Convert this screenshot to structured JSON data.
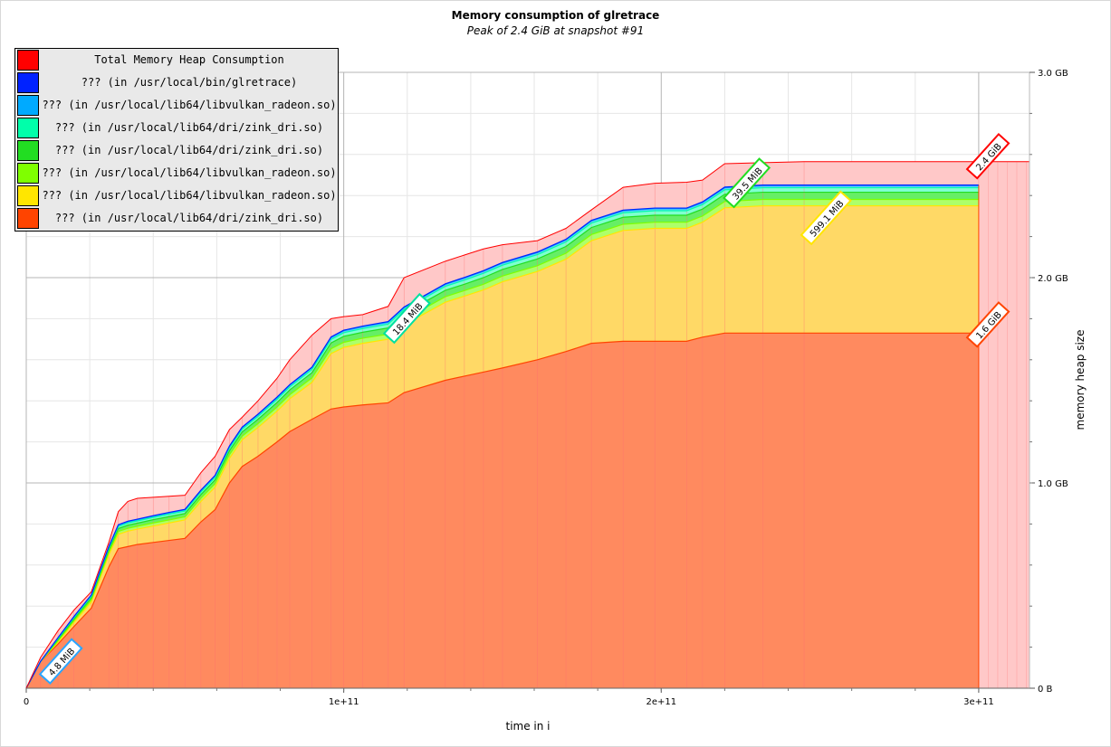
{
  "chart_data": {
    "type": "area",
    "title": "Memory consumption of glretrace",
    "subtitle": "Peak of 2.4 GiB at snapshot #91",
    "xlabel": "time in i",
    "ylabel": "memory heap size",
    "x_ticks": [
      0,
      100000000000,
      200000000000,
      300000000000
    ],
    "x_tick_labels": [
      "0",
      "1e+11",
      "2e+11",
      "3e+11"
    ],
    "y_ticks": [
      0,
      1000000000,
      2000000000,
      3000000000
    ],
    "y_tick_labels": [
      "0 B",
      "1.0 GB",
      "2.0 GB",
      "3.0 GB"
    ],
    "xlim": [
      0,
      316000000000
    ],
    "ylim": [
      0,
      3000000000
    ],
    "y_axis_side": "right",
    "grid": true,
    "legend_position": "top-left",
    "snapshots_x": [
      0,
      4500000000,
      10000000000,
      15000000000,
      20500000000,
      26000000000,
      29000000000,
      32000000000,
      35000000000,
      40000000000,
      45000000000,
      50000000000,
      55000000000,
      59500000000,
      64000000000,
      68000000000,
      73000000000,
      79000000000,
      83000000000,
      90000000000,
      96000000000,
      100000000000,
      106000000000,
      114000000000,
      119000000000,
      132000000000,
      138000000000,
      144000000000,
      150000000000,
      161000000000,
      170000000000,
      178000000000,
      188000000000,
      198000000000,
      208000000000,
      213000000000,
      220000000000,
      232000000000,
      245000000000,
      300000000000
    ],
    "series": [
      {
        "name": "??? (in /usr/local/lib64/dri/zink_dri.so)",
        "color": "#ff4400",
        "fill": "#ff8a5f",
        "values": [
          0,
          130000000,
          215000000,
          300000000,
          390000000,
          590000000,
          680000000,
          690000000,
          700000000,
          710000000,
          720000000,
          730000000,
          810000000,
          870000000,
          1000000000,
          1080000000,
          1130000000,
          1200000000,
          1250000000,
          1310000000,
          1360000000,
          1370000000,
          1380000000,
          1390000000,
          1440000000,
          1500000000,
          1520000000,
          1540000000,
          1560000000,
          1600000000,
          1640000000,
          1680000000,
          1690000000,
          1690000000,
          1690000000,
          1710000000,
          1730000000,
          1730000000,
          1730000000,
          1730000000
        ]
      },
      {
        "name": "??? (in /usr/local/lib64/libvulkan_radeon.so)",
        "color": "#ffe600",
        "fill": "#ffd966",
        "values": [
          0,
          0,
          10000000,
          20000000,
          30000000,
          60000000,
          70000000,
          75000000,
          75000000,
          80000000,
          85000000,
          90000000,
          100000000,
          110000000,
          120000000,
          130000000,
          140000000,
          150000000,
          160000000,
          180000000,
          270000000,
          290000000,
          300000000,
          310000000,
          330000000,
          380000000,
          390000000,
          400000000,
          420000000,
          430000000,
          450000000,
          500000000,
          540000000,
          550000000,
          550000000,
          560000000,
          610000000,
          620000000,
          620000000,
          620000000
        ]
      },
      {
        "name": "??? (in /usr/local/lib64/libvulkan_radeon.so)",
        "color": "#7fff00",
        "fill": "#adff6a",
        "values": [
          0,
          0,
          6000000,
          8000000,
          10000000,
          12000000,
          14000000,
          14000000,
          14000000,
          15000000,
          15000000,
          15000000,
          16000000,
          17000000,
          18000000,
          18000000,
          19000000,
          20000000,
          20000000,
          22000000,
          24000000,
          25000000,
          25000000,
          25000000,
          26000000,
          27000000,
          27000000,
          28000000,
          28000000,
          28000000,
          29000000,
          30000000,
          30000000,
          30000000,
          30000000,
          30000000,
          31000000,
          31000000,
          31000000,
          31000000
        ]
      },
      {
        "name": "??? (in /usr/local/lib64/dri/zink_dri.so)",
        "color": "#22dd22",
        "fill": "#66ee66",
        "values": [
          0,
          0,
          6000000,
          8000000,
          10000000,
          12000000,
          14000000,
          15000000,
          15000000,
          16000000,
          16000000,
          16000000,
          17000000,
          18000000,
          19000000,
          20000000,
          21000000,
          22000000,
          23000000,
          25000000,
          28000000,
          29000000,
          29000000,
          30000000,
          30000000,
          31000000,
          31000000,
          32000000,
          32000000,
          33000000,
          33000000,
          34000000,
          34000000,
          34000000,
          34000000,
          34000000,
          35000000,
          35000000,
          35000000,
          35000000
        ]
      },
      {
        "name": "??? (in /usr/local/lib64/dri/zink_dri.so)",
        "color": "#00ffaa",
        "fill": "#7fffd0",
        "values": [
          0,
          0,
          5000000,
          7000000,
          8000000,
          9000000,
          10000000,
          11000000,
          11000000,
          11000000,
          12000000,
          12000000,
          12000000,
          13000000,
          13000000,
          14000000,
          14000000,
          15000000,
          15000000,
          16000000,
          17000000,
          18000000,
          18000000,
          19000000,
          19000000,
          20000000,
          20000000,
          21000000,
          21000000,
          21000000,
          22000000,
          22000000,
          22000000,
          22000000,
          22000000,
          22000000,
          22000000,
          22000000,
          22000000,
          22000000
        ]
      },
      {
        "name": "??? (in /usr/local/lib64/libvulkan_radeon.so)",
        "color": "#00aaff",
        "fill": "#66ccff",
        "values": [
          0,
          0,
          3000000,
          4000000,
          5000000,
          5000000,
          6000000,
          6000000,
          6000000,
          6000000,
          6000000,
          6000000,
          7000000,
          7000000,
          7000000,
          7000000,
          8000000,
          8000000,
          8000000,
          8000000,
          9000000,
          9000000,
          9000000,
          9000000,
          9000000,
          9000000,
          10000000,
          10000000,
          10000000,
          10000000,
          10000000,
          10000000,
          10000000,
          10000000,
          10000000,
          10000000,
          10000000,
          10000000,
          10000000,
          10000000
        ]
      },
      {
        "name": "??? (in /usr/local/bin/glretrace)",
        "color": "#0022ff",
        "fill": "#4466ff",
        "values": [
          0,
          1000000,
          1500000,
          2000000,
          2000000,
          2000000,
          2500000,
          2500000,
          2500000,
          2500000,
          2500000,
          2500000,
          2500000,
          2500000,
          3000000,
          3000000,
          3000000,
          3000000,
          3000000,
          3000000,
          3000000,
          3000000,
          3000000,
          3000000,
          3000000,
          3000000,
          3000000,
          3000000,
          3000000,
          3000000,
          3000000,
          3000000,
          3000000,
          3000000,
          3000000,
          3000000,
          3000000,
          3000000,
          3000000,
          3000000
        ]
      }
    ],
    "total": {
      "name": "Total Memory Heap Consumption",
      "color": "#ff0000",
      "fill": "#ffc8c8",
      "values": [
        0,
        150000000,
        280000000,
        380000000,
        470000000,
        710000000,
        860000000,
        910000000,
        925000000,
        930000000,
        935000000,
        940000000,
        1050000000,
        1130000000,
        1260000000,
        1320000000,
        1400000000,
        1510000000,
        1600000000,
        1720000000,
        1800000000,
        1810000000,
        1820000000,
        1860000000,
        2000000000,
        2080000000,
        2110000000,
        2140000000,
        2160000000,
        2180000000,
        2240000000,
        2330000000,
        2440000000,
        2460000000,
        2465000000,
        2475000000,
        2555000000,
        2560000000,
        2565000000,
        2565000000
      ]
    },
    "annotations": [
      {
        "text": "4.8 MiB",
        "color": "#2aa5ff",
        "x": 11000000000,
        "y": 130000000
      },
      {
        "text": "18.4 MiB",
        "color": "#00e0a0",
        "x": 120000000000,
        "y": 1800000000
      },
      {
        "text": "39.5 MiB",
        "color": "#22dd22",
        "x": 227000000000,
        "y": 2460000000
      },
      {
        "text": "599.1 MiB",
        "color": "#ffe600",
        "x": 252000000000,
        "y": 2290000000
      },
      {
        "text": "1.6 GiB",
        "color": "#ff4400",
        "x": 303000000000,
        "y": 1770000000
      },
      {
        "text": "2.4 GiB",
        "color": "#ff0000",
        "x": 303000000000,
        "y": 2590000000
      }
    ]
  },
  "legend": {
    "items": [
      {
        "label": "Total Memory Heap Consumption",
        "color": "#ff0000"
      },
      {
        "label": "??? (in /usr/local/bin/glretrace)",
        "color": "#0022ff"
      },
      {
        "label": "??? (in /usr/local/lib64/libvulkan_radeon.so)",
        "color": "#00aaff"
      },
      {
        "label": "??? (in /usr/local/lib64/dri/zink_dri.so)",
        "color": "#00ffaa"
      },
      {
        "label": "??? (in /usr/local/lib64/dri/zink_dri.so)",
        "color": "#22dd22"
      },
      {
        "label": "??? (in /usr/local/lib64/libvulkan_radeon.so)",
        "color": "#7fff00"
      },
      {
        "label": "??? (in /usr/local/lib64/libvulkan_radeon.so)",
        "color": "#ffe600"
      },
      {
        "label": "??? (in /usr/local/lib64/dri/zink_dri.so)",
        "color": "#ff4400"
      }
    ]
  }
}
